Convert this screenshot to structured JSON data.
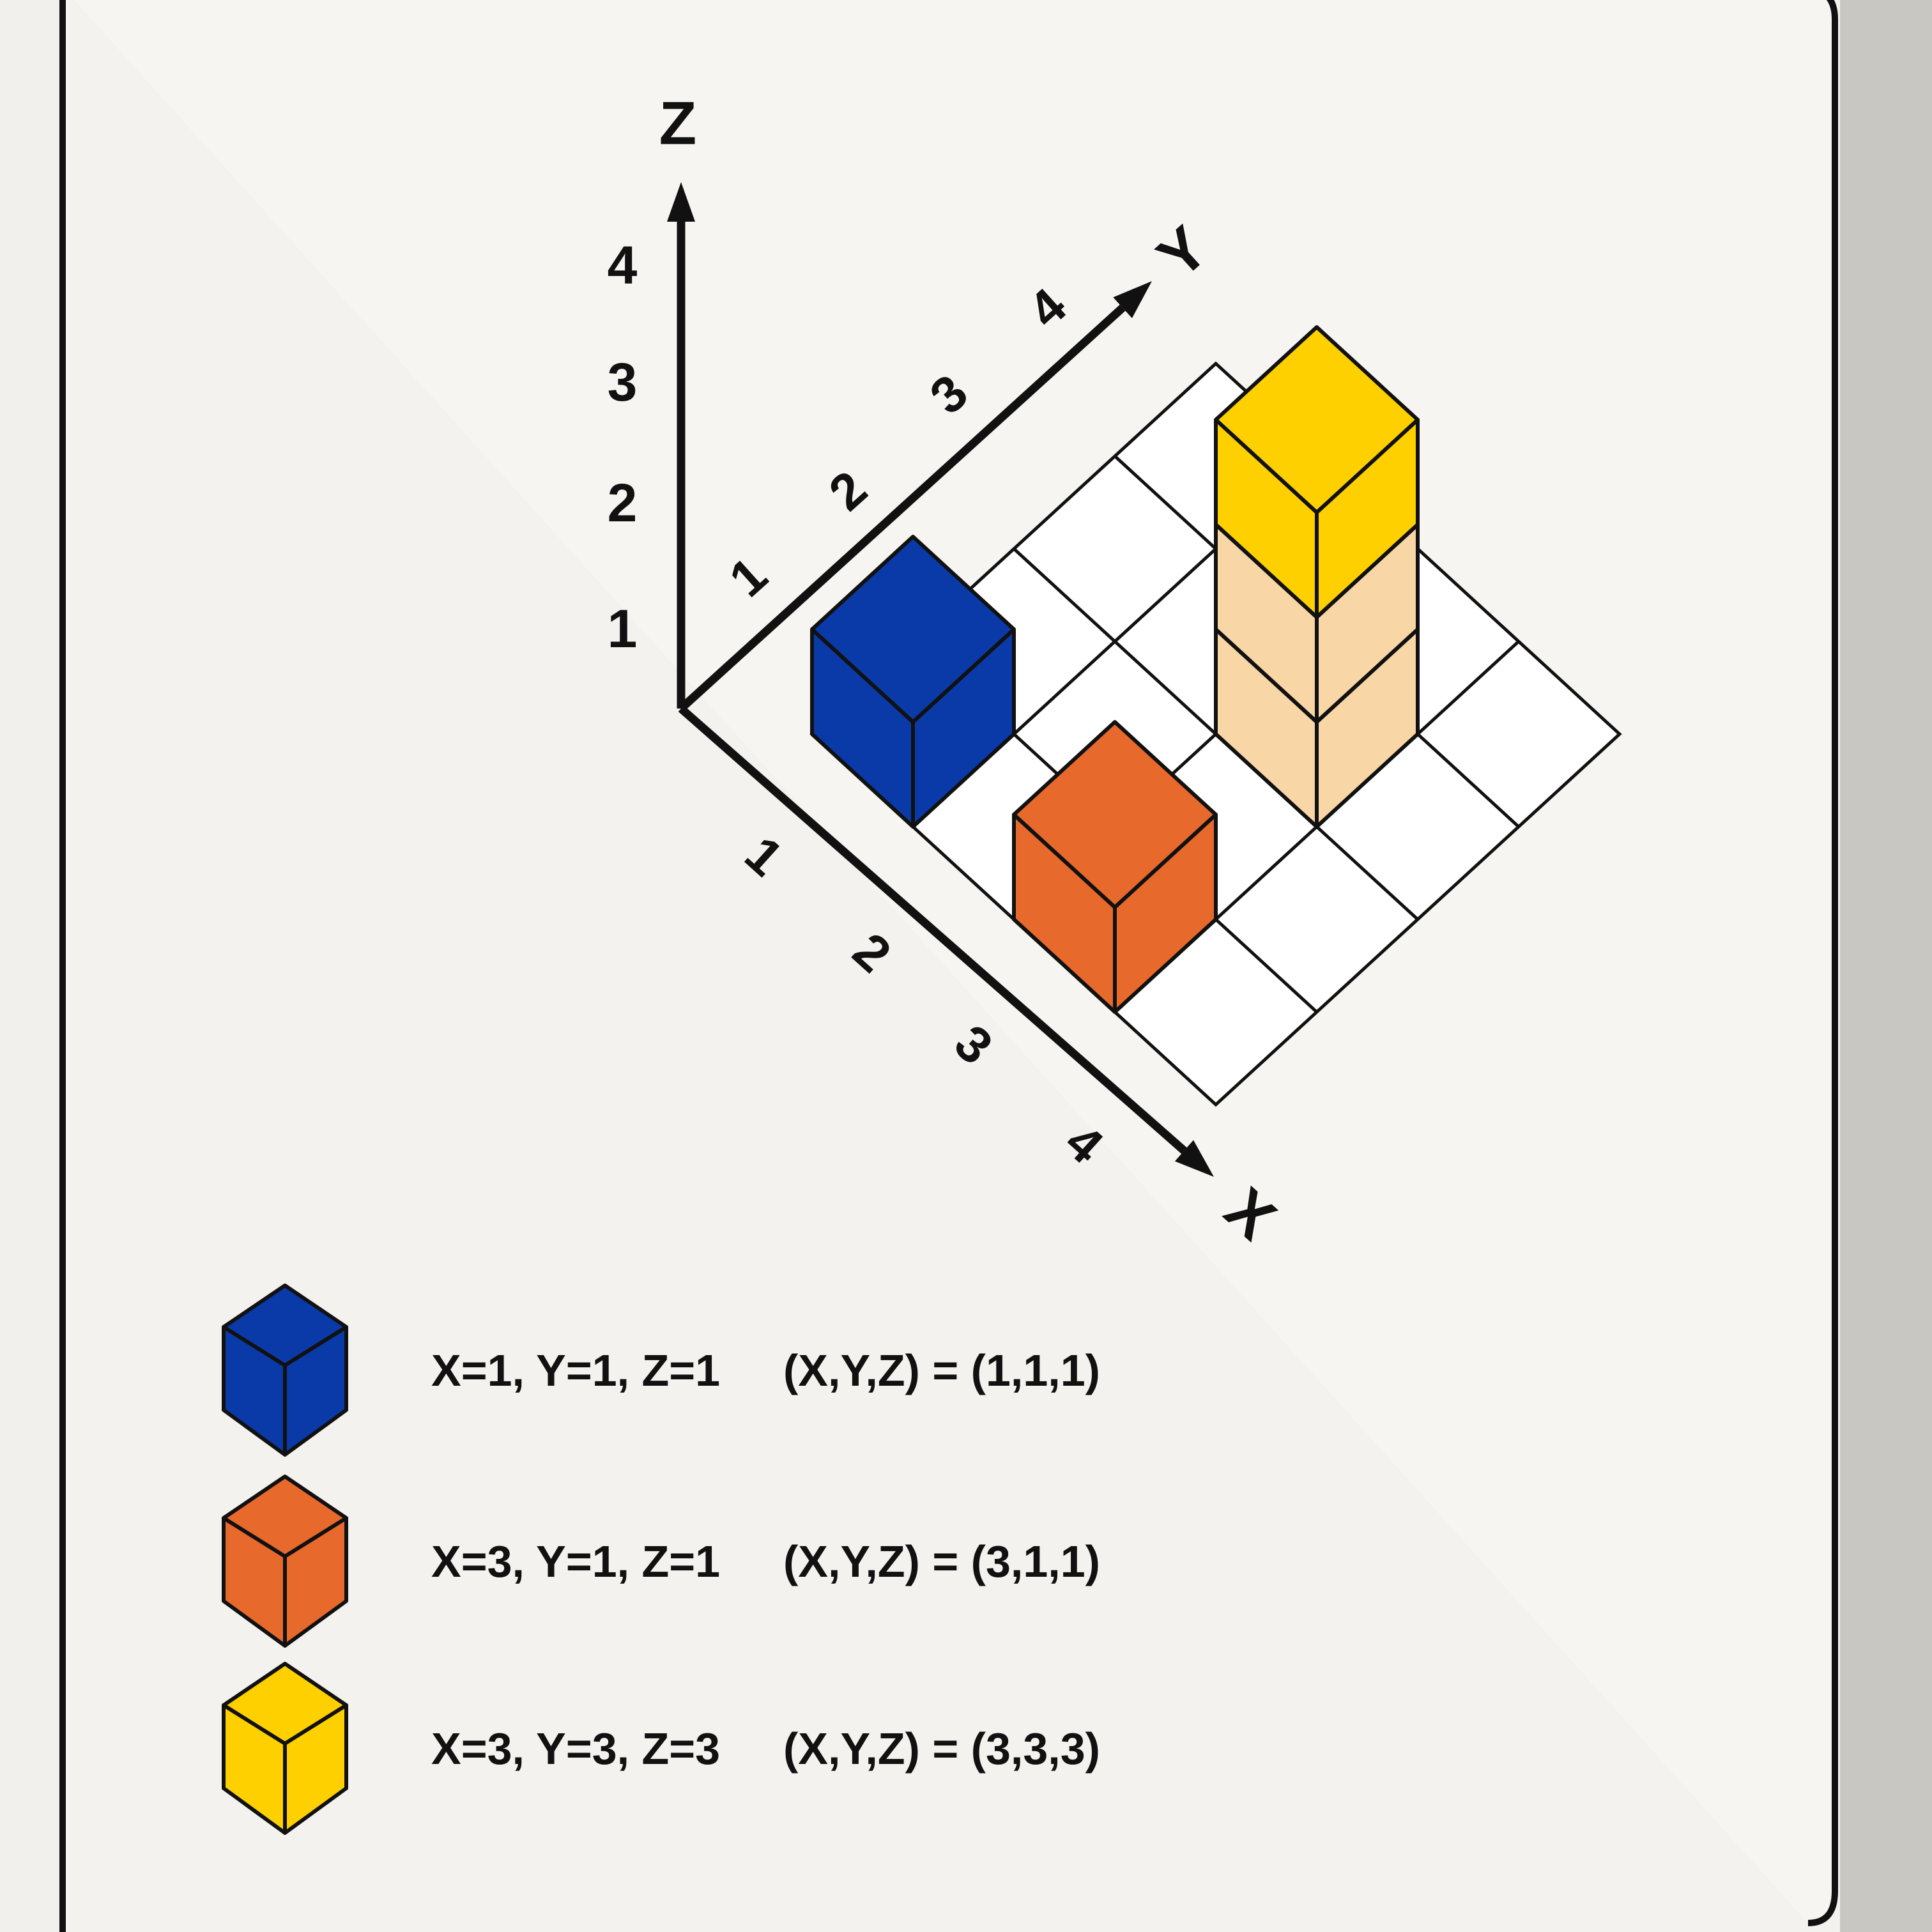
{
  "diagram": {
    "axes": {
      "x_label": "X",
      "y_label": "Y",
      "z_label": "Z",
      "x_ticks": [
        "1",
        "2",
        "3",
        "4"
      ],
      "y_ticks": [
        "1",
        "2",
        "3",
        "4"
      ],
      "z_ticks": [
        "1",
        "2",
        "3",
        "4"
      ]
    },
    "grid_size": 4,
    "cubes": [
      {
        "x": 1,
        "y": 1,
        "z": 1,
        "color": "#0a3aa8"
      },
      {
        "x": 3,
        "y": 1,
        "z": 1,
        "color": "#e8692c"
      },
      {
        "x": 3,
        "y": 3,
        "z": 1,
        "color": "#f8d6a6"
      },
      {
        "x": 3,
        "y": 3,
        "z": 2,
        "color": "#f8d6a6"
      },
      {
        "x": 3,
        "y": 3,
        "z": 3,
        "color": "#ffd000"
      }
    ]
  },
  "legend": [
    {
      "color": "#0a3aa8",
      "components": "X=1, Y=1, Z=1",
      "tuple": "(X,Y,Z) = (1,1,1)"
    },
    {
      "color": "#e8692c",
      "components": "X=3, Y=1, Z=1",
      "tuple": "(X,Y,Z) = (3,1,1)"
    },
    {
      "color": "#ffd000",
      "components": "X=3, Y=3, Z=3",
      "tuple": "(X,Y,Z) = (3,3,3)"
    }
  ],
  "colors": {
    "card": "#f6f5f1",
    "border": "#111111",
    "background": "#c9c7c1"
  }
}
